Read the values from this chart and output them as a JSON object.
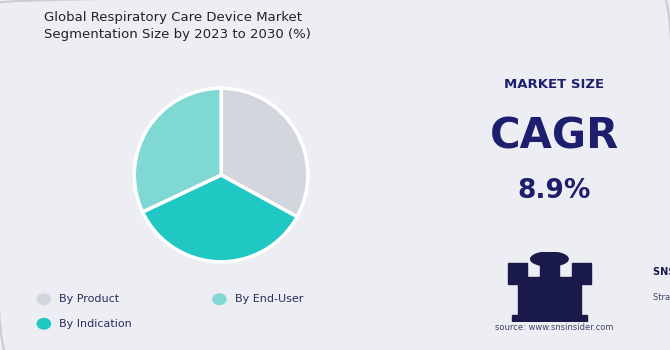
{
  "title": "Global Respiratory Care Device Market\nSegmentation Size by 2023 to 2030 (%)",
  "title_fontsize": 9.5,
  "pie_values": [
    33,
    35,
    32
  ],
  "pie_colors": [
    "#d4d6de",
    "#1fc8c2",
    "#7fd8d2"
  ],
  "left_bg": "#eceef4",
  "right_bg": "#c8ccd6",
  "market_size_label": "MARKET SIZE",
  "cagr_label": "CAGR",
  "cagr_value": "8.9%",
  "text_color": "#1e1e6e",
  "legend_text_color": "#2a2a5e",
  "source_text": "source: www.snsinsider.com",
  "figsize": [
    6.7,
    3.5
  ],
  "dpi": 100,
  "startangle": 90,
  "legend_items": [
    {
      "label": "By Product",
      "color": "#d4d6de"
    },
    {
      "label": "By End-User",
      "color": "#7fd8d2"
    },
    {
      "label": "By Indication",
      "color": "#1fc8c2"
    }
  ]
}
